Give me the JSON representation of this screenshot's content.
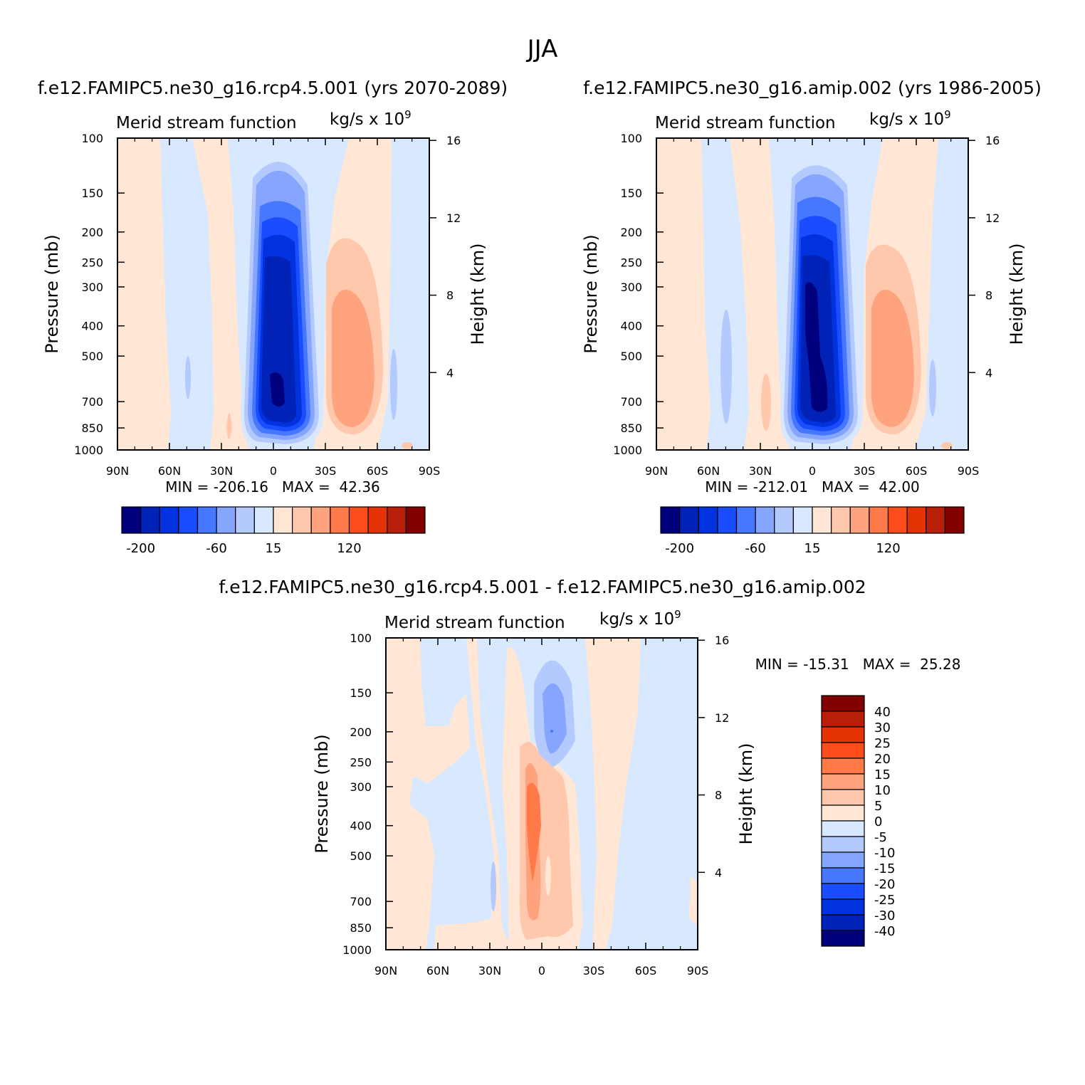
{
  "title": "JJA",
  "chart_data": [
    {
      "type": "heatmap",
      "case_title": "f.e12.FAMIPC5.ne30_g16.rcp4.5.001 (yrs 2070-2089)",
      "left_label": "Merid stream function",
      "right_label": "kg/s x 10",
      "units_exponent": "9",
      "ylabel": "Pressure (mb)",
      "ylabel_right": "Height (km)",
      "x_tick_labels": [
        "90N",
        "60N",
        "30N",
        "0",
        "30S",
        "60S",
        "90S"
      ],
      "y_tick_labels": [
        "100",
        "150",
        "200",
        "250",
        "300",
        "400",
        "500",
        "700",
        "850",
        "1000"
      ],
      "y_right_tick_labels": [
        "16",
        "12",
        "8",
        "4"
      ],
      "min_max_text": "MIN = -206.16   MAX =  42.36",
      "min": -206.16,
      "max": 42.36,
      "colorbar_labels": [
        "-200",
        "-60",
        "15",
        "120"
      ],
      "grid": false
    },
    {
      "type": "heatmap",
      "case_title": "f.e12.FAMIPC5.ne30_g16.amip.002 (yrs 1986-2005)",
      "left_label": "Merid stream function",
      "right_label": "kg/s x 10",
      "units_exponent": "9",
      "ylabel": "Pressure (mb)",
      "ylabel_right": "Height (km)",
      "x_tick_labels": [
        "90N",
        "60N",
        "30N",
        "0",
        "30S",
        "60S",
        "90S"
      ],
      "y_tick_labels": [
        "100",
        "150",
        "200",
        "250",
        "300",
        "400",
        "500",
        "700",
        "850",
        "1000"
      ],
      "y_right_tick_labels": [
        "16",
        "12",
        "8",
        "4"
      ],
      "min_max_text": "MIN = -212.01   MAX =  42.00",
      "min": -212.01,
      "max": 42.0,
      "colorbar_labels": [
        "-200",
        "-60",
        "15",
        "120"
      ],
      "grid": false
    },
    {
      "type": "heatmap",
      "case_title": "f.e12.FAMIPC5.ne30_g16.rcp4.5.001 - f.e12.FAMIPC5.ne30_g16.amip.002",
      "left_label": "Merid stream function",
      "right_label": "kg/s x 10",
      "units_exponent": "9",
      "ylabel": "Pressure (mb)",
      "ylabel_right": "Height (km)",
      "x_tick_labels": [
        "90N",
        "60N",
        "30N",
        "0",
        "30S",
        "60S",
        "90S"
      ],
      "y_tick_labels": [
        "100",
        "150",
        "200",
        "250",
        "300",
        "400",
        "500",
        "700",
        "850",
        "1000"
      ],
      "y_right_tick_labels": [
        "16",
        "12",
        "8",
        "4"
      ],
      "min_max_text": "MIN = -15.31   MAX =  25.28",
      "min": -15.31,
      "max": 25.28,
      "colorbar_labels": [
        "40",
        "30",
        "25",
        "20",
        "15",
        "10",
        "5",
        "0",
        "-5",
        "-10",
        "-15",
        "-20",
        "-25",
        "-30",
        "-40"
      ],
      "grid": false
    }
  ],
  "palette": [
    "#00007f",
    "#0022b6",
    "#0033dd",
    "#1a4dff",
    "#4677ff",
    "#86a5ff",
    "#b4caff",
    "#d8e8ff",
    "#ffe6d5",
    "#ffc8ad",
    "#ffa37e",
    "#ff7a48",
    "#ff4c1b",
    "#e53306",
    "#b81e08",
    "#820000"
  ]
}
